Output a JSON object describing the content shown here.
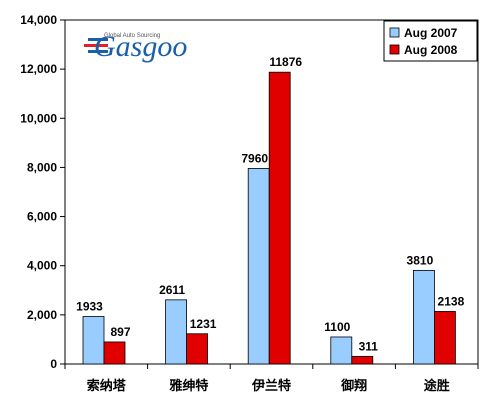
{
  "logo": {
    "tagline": "Global Auto Sourcing",
    "name": "Gasgoo",
    "colors": {
      "primary": "#1a5fa8",
      "accent": "#e0232b"
    }
  },
  "chart_data": {
    "type": "bar",
    "categories": [
      "索纳塔",
      "雅绅特",
      "伊兰特",
      "御翔",
      "途胜"
    ],
    "series": [
      {
        "name": "Aug 2007",
        "color": "#99ccff",
        "values": [
          1933,
          2611,
          7960,
          1100,
          3810
        ],
        "labels": [
          "1933",
          "2611",
          "7960",
          "1100",
          "3810"
        ]
      },
      {
        "name": "Aug 2008",
        "color": "#e00000",
        "values": [
          897,
          1231,
          11876,
          311,
          2138
        ],
        "labels": [
          "897",
          "1231",
          "11876",
          "311",
          "2138"
        ]
      }
    ],
    "ylim": [
      0,
      14000
    ],
    "yticks": [
      0,
      2000,
      4000,
      6000,
      8000,
      10000,
      12000,
      14000
    ],
    "ytick_labels": [
      "0",
      "2,000",
      "4,000",
      "6,000",
      "8,000",
      "10,000",
      "12,000",
      "14,000"
    ],
    "grid": false,
    "legend": "top-right"
  }
}
